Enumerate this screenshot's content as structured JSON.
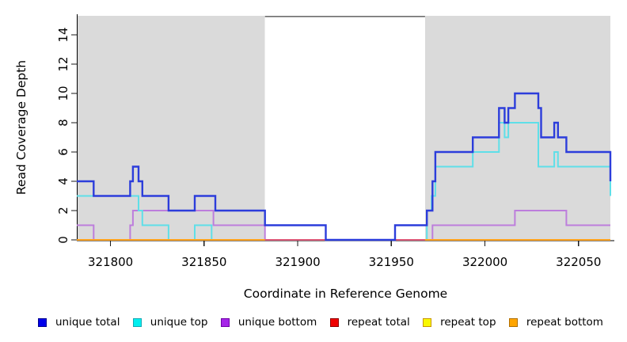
{
  "figure": {
    "background": "#ffffff",
    "shade_color": "#dadada",
    "gap_border_color": "#6e6e6e",
    "axis_color": "#000000",
    "tick_color": "#1a1a1a"
  },
  "chart_data": {
    "type": "line",
    "step": true,
    "title": "",
    "xlabel": "Coordinate in Reference Genome",
    "ylabel": "Read Coverage Depth",
    "xlim": [
      321782,
      322067
    ],
    "ylim": [
      0,
      15.3
    ],
    "x_ticks": [
      321800,
      321850,
      321900,
      321950,
      322000,
      322050
    ],
    "y_ticks": [
      0,
      2,
      4,
      6,
      8,
      10,
      12,
      14
    ],
    "grid": false,
    "legend_position": "bottom",
    "shaded_regions": [
      {
        "x0": 321782,
        "x1": 321882.5
      },
      {
        "x0": 321968,
        "x1": 322067
      }
    ],
    "gap_top_border": {
      "x0": 321882.5,
      "x1": 321968
    },
    "series": [
      {
        "name": "repeat top",
        "color": "#f2f200",
        "line_width": 2,
        "segments": [
          [
            [
              321782,
              0
            ],
            [
              322067,
              0
            ]
          ]
        ]
      },
      {
        "name": "unique bottom",
        "color": "#bd7edc",
        "line_width": 2,
        "segments": [
          [
            [
              321782,
              1
            ],
            [
              321791,
              0
            ],
            [
              321810.5,
              1
            ],
            [
              321812,
              2
            ],
            [
              321855,
              1
            ],
            [
              321882.5,
              0
            ],
            [
              321972,
              1
            ],
            [
              322016,
              2
            ],
            [
              322043.5,
              1
            ],
            [
              322067,
              1
            ]
          ]
        ]
      },
      {
        "name": "unique top",
        "color": "#5fdfe8",
        "line_width": 2,
        "segments": [
          [
            [
              321782,
              3
            ],
            [
              321815,
              2
            ],
            [
              321817,
              1
            ],
            [
              321831,
              0
            ],
            [
              321845,
              1
            ],
            [
              321854,
              0
            ],
            [
              321969,
              2
            ],
            [
              321971.5,
              3
            ],
            [
              321973.5,
              5
            ],
            [
              321993.5,
              6
            ],
            [
              322007.5,
              8
            ],
            [
              322010.5,
              7
            ],
            [
              322012.5,
              8
            ],
            [
              322028.5,
              5
            ],
            [
              322037,
              6
            ],
            [
              322039,
              5
            ],
            [
              322067,
              3
            ]
          ]
        ]
      },
      {
        "name": "repeat total",
        "color": "#dc5878",
        "line_width": 2,
        "segments": [
          [
            [
              321782,
              0
            ],
            [
              322067,
              0
            ]
          ]
        ]
      },
      {
        "name": "repeat bottom",
        "color": "#ffa21c",
        "line_width": 2,
        "segments": [
          [
            [
              321782,
              0
            ],
            [
              321882.5,
              0
            ]
          ],
          [
            [
              321968,
              0
            ],
            [
              322067,
              0
            ]
          ]
        ]
      },
      {
        "name": "unique total",
        "color": "#2c3ddb",
        "line_width": 2.4,
        "segments": [
          [
            [
              321782,
              4
            ],
            [
              321791,
              3
            ],
            [
              321810.5,
              4
            ],
            [
              321812,
              5
            ],
            [
              321815,
              4
            ],
            [
              321817,
              3
            ],
            [
              321831,
              2
            ],
            [
              321845,
              3
            ],
            [
              321856,
              2
            ],
            [
              321882.5,
              1
            ],
            [
              321915,
              0
            ],
            [
              321952,
              1
            ],
            [
              321969,
              2
            ],
            [
              321972,
              4
            ],
            [
              321973.5,
              6
            ],
            [
              321993.5,
              7
            ],
            [
              322007.5,
              9
            ],
            [
              322010.5,
              8
            ],
            [
              322012.5,
              9
            ],
            [
              322016,
              10
            ],
            [
              322028.5,
              9
            ],
            [
              322030,
              7
            ],
            [
              322037,
              8
            ],
            [
              322039,
              7
            ],
            [
              322043.5,
              6
            ],
            [
              322067,
              4
            ]
          ]
        ]
      }
    ]
  },
  "legend": {
    "items": [
      {
        "label": "unique total",
        "fill": "#0000eb",
        "border": "#000090"
      },
      {
        "label": "unique top",
        "fill": "#00efef",
        "border": "#15a8b4"
      },
      {
        "label": "unique bottom",
        "fill": "#a625e8",
        "border": "#6f00a8"
      },
      {
        "label": "repeat total",
        "fill": "#f00000",
        "border": "#900000"
      },
      {
        "label": "repeat top",
        "fill": "#f8f800",
        "border": "#c89600"
      },
      {
        "label": "repeat bottom",
        "fill": "#ffa500",
        "border": "#b06f00"
      }
    ]
  }
}
